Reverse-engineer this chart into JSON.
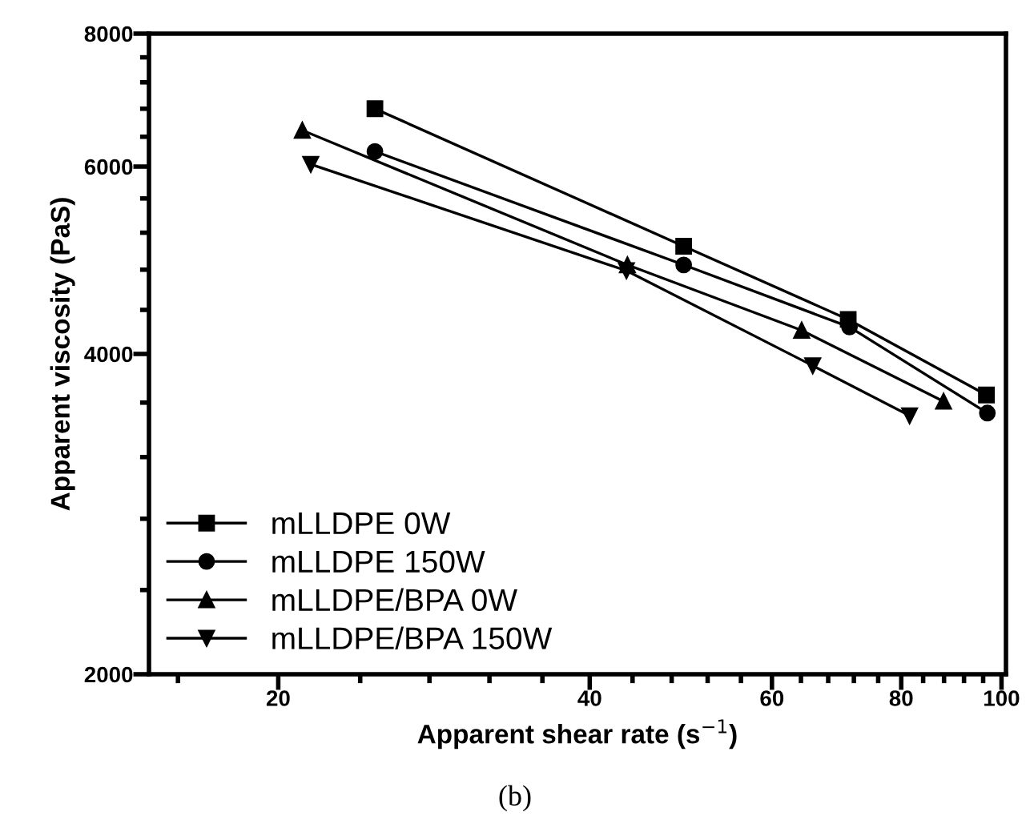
{
  "chart_data": {
    "type": "line",
    "xlabel": "Apparent shear rate (s$^{−1}$)",
    "ylabel": "Apparent viscosity (PaS)",
    "log": "xy",
    "grid": false,
    "legend": "bottom left",
    "line_style": "solid",
    "xlim": [
      15,
      101
    ],
    "ylim": [
      2000,
      8000
    ],
    "xticks": [
      {
        "value": 16,
        "label": null
      },
      20,
      {
        "value": 24,
        "label": null
      },
      {
        "value": 28,
        "label": null
      },
      {
        "value": 32,
        "label": null
      },
      {
        "value": 36,
        "label": null
      },
      40,
      {
        "value": 44,
        "label": null
      },
      {
        "value": 48,
        "label": null
      },
      {
        "value": 52,
        "label": null
      },
      {
        "value": 56,
        "label": null
      },
      60,
      {
        "value": 64,
        "label": null
      },
      {
        "value": 68,
        "label": null
      },
      {
        "value": 72,
        "label": null
      },
      {
        "value": 76,
        "label": null
      },
      80,
      {
        "value": 84,
        "label": null
      },
      {
        "value": 88,
        "label": null
      },
      {
        "value": 92,
        "label": null
      },
      {
        "value": 96,
        "label": null
      },
      100
    ],
    "yticks": [
      2000,
      {
        "value": 2400,
        "label": null
      },
      {
        "value": 2800,
        "label": null
      },
      {
        "value": 3200,
        "label": null
      },
      {
        "value": 3600,
        "label": null
      },
      4000,
      {
        "value": 4400,
        "label": null
      },
      {
        "value": 4800,
        "label": null
      },
      {
        "value": 5200,
        "label": null
      },
      {
        "value": 5600,
        "label": null
      },
      6000,
      {
        "value": 6400,
        "label": null
      },
      {
        "value": 6800,
        "label": null
      },
      {
        "value": 7200,
        "label": null
      },
      {
        "value": 7600,
        "label": null
      },
      8000
    ],
    "series": [
      {
        "name": "mLLDPE 0W",
        "color": "#000000",
        "marker": "square",
        "x": [
          24.8,
          49.3,
          71.1,
          96.7
        ],
        "values": [
          6800,
          5050,
          4310,
          3660
        ]
      },
      {
        "name": "mLLDPE 150W",
        "color": "#000000",
        "marker": "circle",
        "x": [
          24.8,
          49.3,
          71.3,
          96.9
        ],
        "values": [
          6200,
          4850,
          4240,
          3520
        ]
      },
      {
        "name": "mLLDPE/BPA 0W",
        "color": "#000000",
        "marker": "triangle",
        "x": [
          21.1,
          43.5,
          64.1,
          87.9
        ],
        "values": [
          6490,
          4850,
          4210,
          3610
        ]
      },
      {
        "name": "mLLDPE/BPA 150W",
        "color": "#000000",
        "marker": "triangle_down",
        "x": [
          21.5,
          43.4,
          65.7,
          81.5
        ],
        "values": [
          6030,
          4790,
          3900,
          3500
        ]
      }
    ],
    "annotations": [
      "(b)"
    ]
  }
}
